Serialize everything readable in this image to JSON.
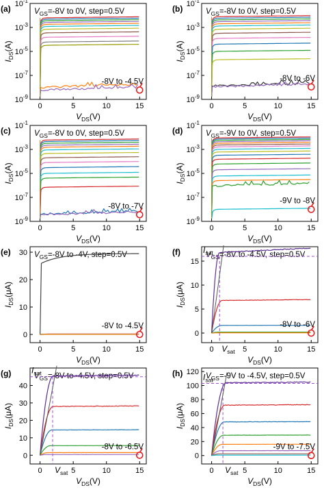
{
  "chart_data": [
    {
      "id": "a",
      "panel_label": "(a)",
      "type": "line",
      "yscale": "log",
      "ylabel": "I_DS(A)",
      "xlabel": "V_DS(V)",
      "title": "V_GS=-8V to 0V, step=0.5V",
      "annotation": "-8V to -4.5V",
      "xlim": [
        -1.5,
        16
      ],
      "ylim_exp": [
        -9,
        -1
      ],
      "xticks": [
        "0",
        "5",
        "10",
        "15"
      ],
      "yticks": [
        "10^-9",
        "10^-7",
        "10^-5",
        "10^-3",
        "10^-1"
      ],
      "curves": [
        {
          "sat": 0.0063,
          "color": "#d62728"
        },
        {
          "sat": 0.0048,
          "color": "#1f77b4"
        },
        {
          "sat": 0.0036,
          "color": "#2ca02c"
        },
        {
          "sat": 0.0026,
          "color": "#9467bd"
        },
        {
          "sat": 0.0018,
          "color": "#ff7f0e"
        },
        {
          "sat": 0.0012,
          "color": "#17becf"
        },
        {
          "sat": 0.0007,
          "color": "#bcbd22"
        },
        {
          "sat": 0.00035,
          "color": "#8c564b"
        },
        {
          "sat": 0.00015,
          "color": "#e377c2"
        },
        {
          "sat": 6e-05,
          "color": "#7f7f7f"
        },
        {
          "sat": 3.2e-05,
          "color": "#999900"
        },
        {
          "sat": 1e-08,
          "color": "#ff7f0e",
          "noise": true
        },
        {
          "sat": 6e-09,
          "color": "#9467bd",
          "noise": true
        }
      ]
    },
    {
      "id": "b",
      "panel_label": "(b)",
      "type": "line",
      "yscale": "log",
      "ylabel": "I_DS(A)",
      "xlabel": "V_DS(V)",
      "title": "V_GS=-8V to 0V, step=0.5V",
      "annotation": "-8V to -6V",
      "xlim": [
        -1.5,
        16
      ],
      "ylim_exp": [
        -9,
        -1
      ],
      "xticks": [
        "0",
        "5",
        "10",
        "15"
      ],
      "yticks": [
        "10^-9",
        "10^-7",
        "10^-5",
        "10^-3",
        "10^-1"
      ],
      "curves": [
        {
          "sat": 0.0078,
          "color": "#d62728"
        },
        {
          "sat": 0.0058,
          "color": "#1f77b4"
        },
        {
          "sat": 0.0042,
          "color": "#2ca02c"
        },
        {
          "sat": 0.003,
          "color": "#9467bd"
        },
        {
          "sat": 0.002,
          "color": "#ff7f0e"
        },
        {
          "sat": 0.0013,
          "color": "#17becf"
        },
        {
          "sat": 0.0007,
          "color": "#bcbd22"
        },
        {
          "sat": 0.00032,
          "color": "#8c564b"
        },
        {
          "sat": 0.00012,
          "color": "#e377c2"
        },
        {
          "sat": 4e-05,
          "color": "#1f77b4"
        },
        {
          "sat": 1e-05,
          "color": "#2ca02c"
        },
        {
          "sat": 2e-06,
          "color": "#bcbd22"
        },
        {
          "sat": 1.3e-08,
          "color": "#333333",
          "noise": true
        },
        {
          "sat": 1.1e-08,
          "color": "#9467bd",
          "noise": true
        }
      ]
    },
    {
      "id": "c",
      "panel_label": "(c)",
      "type": "line",
      "yscale": "log",
      "ylabel": "I_DS(A)",
      "xlabel": "V_DS(V)",
      "title": "V_GS=-8V to 0V, step=0.5V",
      "annotation": "-8V to -7V",
      "xlim": [
        -1.5,
        16
      ],
      "ylim_exp": [
        -9,
        -1
      ],
      "xticks": [
        "0",
        "5",
        "10",
        "15"
      ],
      "yticks": [
        "10^-9",
        "10^-7",
        "10^-5",
        "10^-3",
        "10^-1"
      ],
      "curves": [
        {
          "sat": 0.006,
          "color": "#d62728"
        },
        {
          "sat": 0.0045,
          "color": "#1f77b4"
        },
        {
          "sat": 0.0032,
          "color": "#2ca02c"
        },
        {
          "sat": 0.0022,
          "color": "#9467bd"
        },
        {
          "sat": 0.0015,
          "color": "#ff7f0e"
        },
        {
          "sat": 0.0009,
          "color": "#17becf"
        },
        {
          "sat": 0.00045,
          "color": "#bcbd22"
        },
        {
          "sat": 0.0002,
          "color": "#8c564b"
        },
        {
          "sat": 8e-05,
          "color": "#e377c2"
        },
        {
          "sat": 3e-05,
          "color": "#1f77b4"
        },
        {
          "sat": 1e-05,
          "color": "#17becf"
        },
        {
          "sat": 4e-06,
          "color": "#2ca02c"
        },
        {
          "sat": 7e-07,
          "color": "#d62728"
        },
        {
          "sat": 4e-09,
          "color": "#1f77b4",
          "noise": true
        },
        {
          "sat": 3.6e-09,
          "color": "#9467bd",
          "noise": true
        }
      ]
    },
    {
      "id": "d",
      "panel_label": "(d)",
      "type": "line",
      "yscale": "log",
      "ylabel": "I_DS(A)",
      "xlabel": "V_DS(V)",
      "title": "V_GS=-9V to 0V, step=0.5V",
      "annotation": "-9V to -8V",
      "xlim": [
        -1.5,
        16
      ],
      "ylim_exp": [
        -9,
        -1
      ],
      "xticks": [
        "0",
        "5",
        "10",
        "15"
      ],
      "yticks": [
        "10^-9",
        "10^-7",
        "10^-5",
        "10^-3",
        "10^-1"
      ],
      "curves": [
        {
          "sat": 0.009,
          "color": "#d62728"
        },
        {
          "sat": 0.0072,
          "color": "#1f77b4"
        },
        {
          "sat": 0.0056,
          "color": "#2ca02c"
        },
        {
          "sat": 0.0043,
          "color": "#9467bd"
        },
        {
          "sat": 0.0032,
          "color": "#ff7f0e"
        },
        {
          "sat": 0.0023,
          "color": "#8c564b"
        },
        {
          "sat": 0.0016,
          "color": "#e377c2"
        },
        {
          "sat": 0.001,
          "color": "#17becf"
        },
        {
          "sat": 0.0006,
          "color": "#bcbd22"
        },
        {
          "sat": 0.00032,
          "color": "#1f77b4"
        },
        {
          "sat": 0.00015,
          "color": "#d62728"
        },
        {
          "sat": 6e-05,
          "color": "#2ca02c"
        },
        {
          "sat": 2e-05,
          "color": "#9467bd"
        },
        {
          "sat": 6e-06,
          "color": "#17becf"
        },
        {
          "sat": 2.5e-06,
          "color": "#ff7f0e"
        },
        {
          "sat": 9e-07,
          "color": "#2ca02c",
          "noise": true,
          "decay": true
        },
        {
          "sat": 1e-08,
          "color": "#17becf"
        }
      ]
    },
    {
      "id": "e",
      "panel_label": "(e)",
      "type": "line",
      "yscale": "linear",
      "ylabel": "I_DS(μA)",
      "xlabel": "V_DS(V)",
      "title": "V_GS=-8V to -4V, step=0.5V",
      "annotation": "-8V to -4.5V",
      "xlim": [
        -1.5,
        16
      ],
      "ylim": [
        -3,
        32
      ],
      "xticks": [
        "0",
        "5",
        "10",
        "15"
      ],
      "yticks": [
        "0",
        "10",
        "20",
        "30"
      ],
      "curves": [
        {
          "sat": 29.5,
          "color": "#404040",
          "vsat": 0.2,
          "dip": true
        },
        {
          "sat": 0.15,
          "color": "#d62728"
        },
        {
          "sat": 0.1,
          "color": "#1f77b4"
        },
        {
          "sat": 0.05,
          "color": "#2ca02c"
        },
        {
          "sat": 0.02,
          "color": "#ff7f0e"
        }
      ]
    },
    {
      "id": "f",
      "panel_label": "(f)",
      "type": "line",
      "yscale": "linear",
      "ylabel": "I_DS(μA)",
      "xlabel": "V_DS(V)",
      "title": "V_GS=-8V to -4.5V, step=0.5V",
      "annotation": "-8V to -6V",
      "isat_label": "I_sat",
      "vsat_label": "V_sat",
      "xlim": [
        -1.5,
        16
      ],
      "ylim": [
        -2,
        18
      ],
      "xticks": [
        "0",
        "5",
        "10",
        "15"
      ],
      "yticks": [
        "0",
        "5",
        "10",
        "15"
      ],
      "isat_value": 16,
      "vsat_value": 1.2,
      "curves": [
        {
          "sat": 16.8,
          "color": "#5b2c91",
          "vsat": 1.2,
          "slope": 0.06
        },
        {
          "sat": 6.8,
          "color": "#d62728",
          "vsat": 1.6,
          "slope": 0.03
        },
        {
          "sat": 1.6,
          "color": "#1f77b4",
          "vsat": 1.6,
          "slope": 0.01
        },
        {
          "sat": 0.2,
          "color": "#2ca02c",
          "vsat": 1.0
        },
        {
          "sat": 0.05,
          "color": "#ff7f0e",
          "vsat": 1.0
        }
      ]
    },
    {
      "id": "g",
      "panel_label": "(g)",
      "type": "line",
      "yscale": "linear",
      "ylabel": "I_DS(μA)",
      "xlabel": "V_DS(V)",
      "title": "V_GS=-8V to -4.5V, step=0.5V",
      "annotation": "-8V to -6.5V",
      "isat_label": "I_sat",
      "vsat_label": "V_sat",
      "xlim": [
        -1.5,
        16
      ],
      "ylim": [
        -5,
        50
      ],
      "xticks": [
        "0",
        "5",
        "10",
        "15"
      ],
      "yticks": [
        "0",
        "10",
        "20",
        "30",
        "40"
      ],
      "isat_value": 45,
      "vsat_value": 1.9,
      "curves": [
        {
          "sat": 45.5,
          "color": "#5b2c91",
          "vsat": 2.0
        },
        {
          "sat": 28,
          "color": "#d62728",
          "vsat": 2.0
        },
        {
          "sat": 14.5,
          "color": "#1f77b4",
          "vsat": 1.8
        },
        {
          "sat": 5.5,
          "color": "#2ca02c",
          "vsat": 1.6
        },
        {
          "sat": 1.5,
          "color": "#ff7f0e",
          "vsat": 1.2
        },
        {
          "sat": 0.4,
          "color": "#9467bd",
          "vsat": 1.0
        }
      ]
    },
    {
      "id": "h",
      "panel_label": "(h)",
      "type": "line",
      "yscale": "linear",
      "ylabel": "I_DS(μA)",
      "xlabel": "V_DS(V)",
      "title": "V_GS=-9V to -4.5V, step=0.5V",
      "annotation": "-9V to -7.5V",
      "isat_label": "I_sat",
      "vsat_label": "V_sat",
      "xlim": [
        -1.5,
        16
      ],
      "ylim": [
        -12,
        125
      ],
      "xticks": [
        "0",
        "5",
        "10",
        "15"
      ],
      "yticks": [
        "0",
        "20",
        "40",
        "60",
        "80",
        "100",
        "120"
      ],
      "isat_value": 103,
      "vsat_value": 1.7,
      "curves": [
        {
          "sat": 104,
          "color": "#5b2c91",
          "vsat": 2.2
        },
        {
          "sat": 72,
          "color": "#d62728",
          "vsat": 2.0
        },
        {
          "sat": 48,
          "color": "#1f77b4",
          "vsat": 1.9
        },
        {
          "sat": 29,
          "color": "#2ca02c",
          "vsat": 1.8
        },
        {
          "sat": 16,
          "color": "#ff7f0e",
          "vsat": 1.6
        },
        {
          "sat": 7,
          "color": "#9467bd",
          "vsat": 1.4
        },
        {
          "sat": 2.5,
          "color": "#8c564b",
          "vsat": 1.2
        },
        {
          "sat": 0.6,
          "color": "#17becf",
          "vsat": 1.0
        }
      ]
    }
  ]
}
